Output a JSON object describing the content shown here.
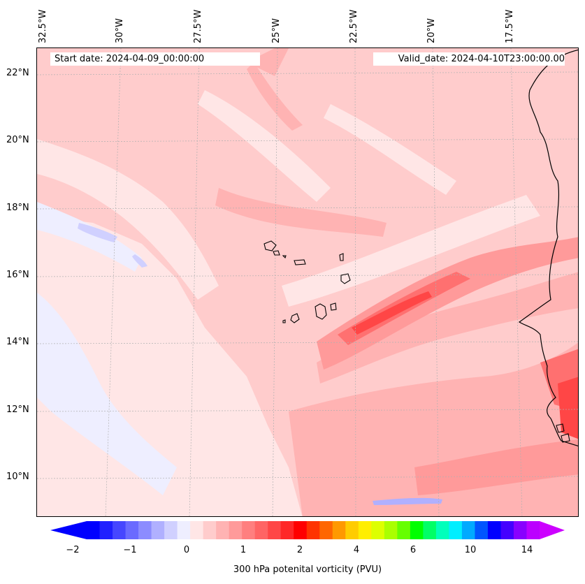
{
  "header": {
    "start_date": "Start date: 2024-04-09_00:00:00",
    "valid_date": "Valid_date: 2024-04-10T23:00:00.00"
  },
  "axes": {
    "lon_labels": [
      "32.5°W",
      "30°W",
      "27.5°W",
      "25°W",
      "22.5°W",
      "20°W",
      "17.5°W"
    ],
    "lat_labels": [
      "22°N",
      "20°N",
      "18°N",
      "16°N",
      "14°N",
      "12°N",
      "10°N"
    ]
  },
  "colorbar": {
    "label": "300 hPa potenital vorticity (PVU)",
    "tick_labels": [
      "−2",
      "−1",
      "0",
      "1",
      "2",
      "4",
      "6",
      "10",
      "14"
    ],
    "colors": [
      "#0000ff",
      "#2020ff",
      "#4646ff",
      "#6a6aff",
      "#8c8cff",
      "#b0b0ff",
      "#d0d0ff",
      "#eeeeff",
      "#ffe6e6",
      "#ffcccc",
      "#ffb3b3",
      "#ff9a9a",
      "#ff7f7f",
      "#ff6464",
      "#ff4646",
      "#ff2828",
      "#ff0000",
      "#ff3300",
      "#ff6600",
      "#ff9900",
      "#ffcc00",
      "#ffee00",
      "#ddff00",
      "#aaff00",
      "#66ff00",
      "#00ff00",
      "#00ff66",
      "#00ffbb",
      "#00eeff",
      "#00aaff",
      "#0055ff",
      "#0000ff",
      "#4400ff",
      "#8800ff",
      "#bb00ff"
    ],
    "extend_min_color": "#0000ff",
    "extend_max_color": "#cc00ff"
  },
  "map_colors": {
    "background": "#ffe6e6",
    "light_pink": "#ffcccc",
    "mid_pink": "#ffb3b3",
    "pink": "#ff9a9a",
    "red": "#ff7070",
    "deep_red": "#ff4646",
    "pale_blue": "#eeeeff",
    "light_blue": "#d0d0ff",
    "blue": "#b0b0ff",
    "white": "#ffffff",
    "coast": "#000000"
  }
}
